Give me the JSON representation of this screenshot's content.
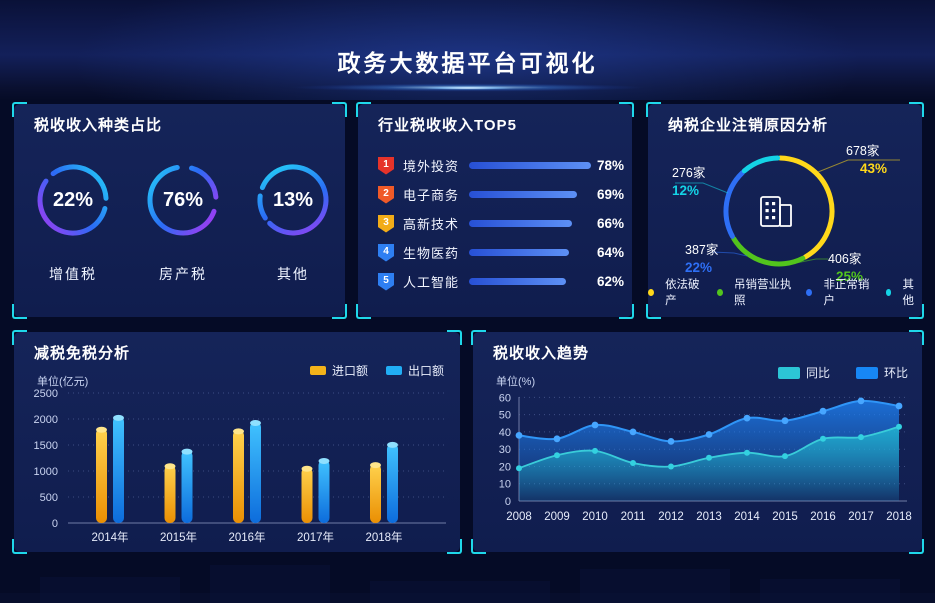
{
  "header": {
    "title": "政务大数据平台可视化"
  },
  "panels": {
    "tax_share": {
      "title": "税收收入种类占比"
    },
    "industry_top5": {
      "title": "行业税收收入TOP5"
    },
    "cancellation": {
      "title": "纳税企业注销原因分析"
    },
    "tax_reduction": {
      "title": "减税免税分析"
    },
    "trend": {
      "title": "税收收入趋势"
    }
  },
  "chart_data": [
    {
      "id": "tax-share-donuts",
      "type": "pie",
      "title": "税收收入种类占比",
      "items": [
        {
          "label": "增值税",
          "value": 22,
          "pct": "22%"
        },
        {
          "label": "房产税",
          "value": 76,
          "pct": "76%"
        },
        {
          "label": "其他",
          "value": 13,
          "pct": "13%"
        }
      ]
    },
    {
      "id": "industry-top5",
      "type": "bar",
      "title": "行业税收收入TOP5",
      "unit": "%",
      "categories": [
        "境外投资",
        "电子商务",
        "高新技术",
        "生物医药",
        "人工智能"
      ],
      "values": [
        78,
        69,
        66,
        64,
        62
      ],
      "badge_colors": [
        "#e6332a",
        "#f05a28",
        "#f2ac18",
        "#2e7ff2",
        "#2e7ff2"
      ],
      "bar_color_start": "#2750d5",
      "bar_color_end": "#5d90f5"
    },
    {
      "id": "cancellation-donut",
      "type": "pie",
      "title": "纳税企业注销原因分析",
      "slices": [
        {
          "label": "依法破产",
          "count": "678家",
          "pct": "43%",
          "value": 43,
          "color": "#ffd81a"
        },
        {
          "label": "吊销营业执照",
          "count": "406家",
          "pct": "25%",
          "value": 25,
          "color": "#52c41d"
        },
        {
          "label": "非正常销户",
          "count": "387家",
          "pct": "22%",
          "value": 22,
          "color": "#2e6ff5"
        },
        {
          "label": "其他",
          "count": "276家",
          "pct": "12%",
          "value": 12,
          "color": "#14d3e6"
        }
      ]
    },
    {
      "id": "tax-reduction-bars",
      "type": "bar",
      "title": "减税免税分析",
      "ylabel": "单位(亿元)",
      "ylim": [
        0,
        2500
      ],
      "yticks": [
        0,
        500,
        1000,
        1500,
        2000,
        2500
      ],
      "categories": [
        "2014年",
        "2015年",
        "2016年",
        "2017年",
        "2018年"
      ],
      "series": [
        {
          "name": "进口额",
          "color": "#f3b31a",
          "values": [
            1850,
            1150,
            1820,
            1100,
            1170
          ]
        },
        {
          "name": "出口额",
          "color": "#21aef5",
          "values": [
            2080,
            1430,
            1980,
            1250,
            1560
          ]
        }
      ]
    },
    {
      "id": "tax-trend",
      "type": "area",
      "title": "税收收入趋势",
      "ylabel": "单位(%)",
      "ylim": [
        0,
        60
      ],
      "yticks": [
        0,
        10,
        20,
        30,
        40,
        50,
        60
      ],
      "x": [
        "2008",
        "2009",
        "2010",
        "2011",
        "2012",
        "2013",
        "2014",
        "2015",
        "2016",
        "2017",
        "2018"
      ],
      "legend_position": "top-right",
      "series": [
        {
          "name": "同比",
          "color": "#2cc5d5",
          "values": [
            19,
            26.5,
            29,
            22,
            20,
            25,
            28,
            26,
            36,
            37,
            43
          ]
        },
        {
          "name": "环比",
          "color": "#1787f5",
          "values": [
            38,
            36,
            44,
            40,
            34.5,
            38.5,
            48,
            46.5,
            52,
            58,
            55
          ]
        }
      ]
    }
  ]
}
